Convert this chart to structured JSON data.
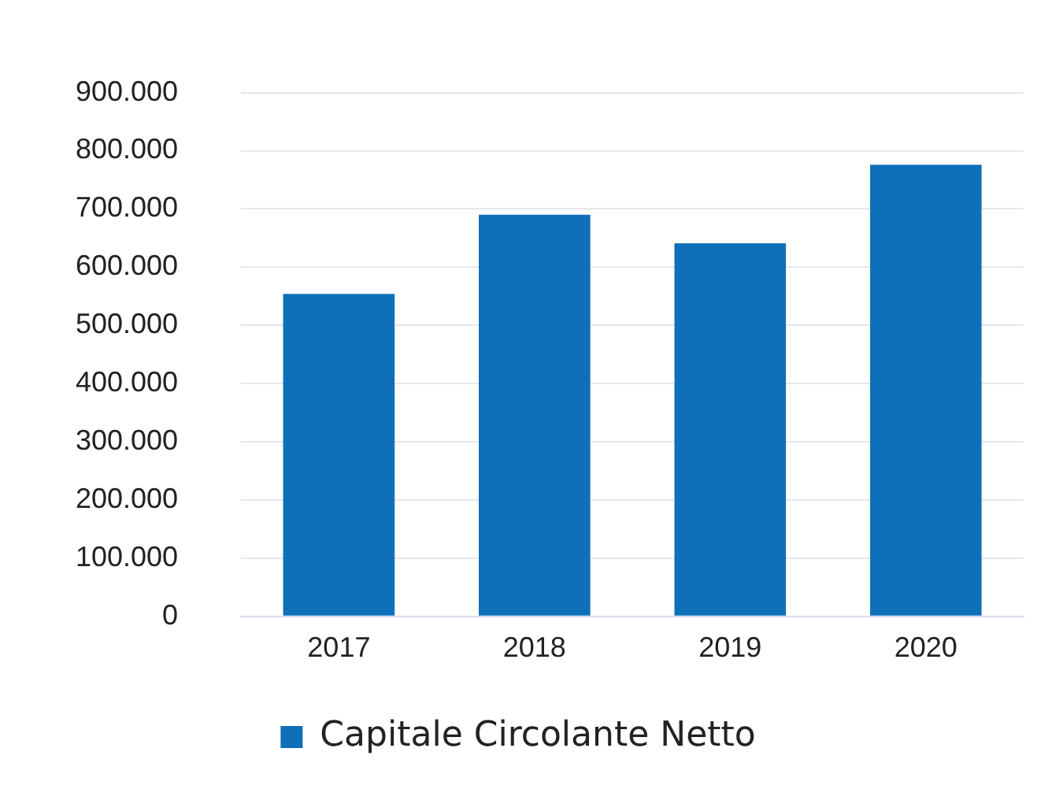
{
  "chart_data": {
    "type": "bar",
    "categories": [
      "2017",
      "2018",
      "2019",
      "2020"
    ],
    "series": [
      {
        "name": "Capitale Circolante Netto",
        "color": "#0f70b9",
        "values": [
          554000,
          690000,
          641000,
          776000
        ]
      }
    ],
    "ylim": [
      0,
      900000
    ],
    "yticks": [
      {
        "value": 0,
        "label": "0"
      },
      {
        "value": 100000,
        "label": "100.000"
      },
      {
        "value": 200000,
        "label": "200.000"
      },
      {
        "value": 300000,
        "label": "300.000"
      },
      {
        "value": 400000,
        "label": "400.000"
      },
      {
        "value": 500000,
        "label": "500.000"
      },
      {
        "value": 600000,
        "label": "600.000"
      },
      {
        "value": 700000,
        "label": "700.000"
      },
      {
        "value": 800000,
        "label": "800.000"
      },
      {
        "value": 900000,
        "label": "900.000"
      }
    ],
    "grid": "y",
    "legend": "bottom"
  }
}
